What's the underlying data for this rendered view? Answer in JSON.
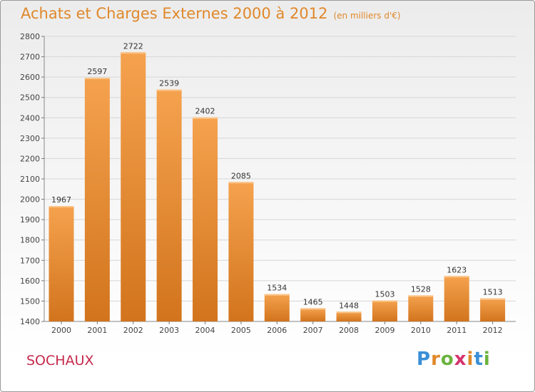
{
  "header": {
    "title": "Achats et Charges Externes 2000 à 2012",
    "subtitle": "(en milliers d'€)"
  },
  "footer": {
    "commune": "SOCHAUX",
    "logo": "Proxiti"
  },
  "colors": {
    "title": "#e0882a",
    "commune": "#c5294b",
    "bar_top": "#f5a24e",
    "bar_bottom": "#d2741d",
    "grid": "#d6d6d6"
  },
  "chart_data": {
    "type": "bar",
    "title": "Achats et Charges Externes 2000 à 2012",
    "subtitle": "(en milliers d'€)",
    "categories": [
      "2000",
      "2001",
      "2002",
      "2003",
      "2004",
      "2005",
      "2006",
      "2007",
      "2008",
      "2009",
      "2010",
      "2011",
      "2012"
    ],
    "values": [
      1967,
      2597,
      2722,
      2539,
      2402,
      2085,
      1534,
      1465,
      1448,
      1503,
      1528,
      1623,
      1513
    ],
    "ylim": [
      1400,
      2800
    ],
    "yticks": [
      1400,
      1500,
      1600,
      1700,
      1800,
      1900,
      2000,
      2100,
      2200,
      2300,
      2400,
      2500,
      2600,
      2700,
      2800
    ],
    "grid": true,
    "legend": "none"
  }
}
